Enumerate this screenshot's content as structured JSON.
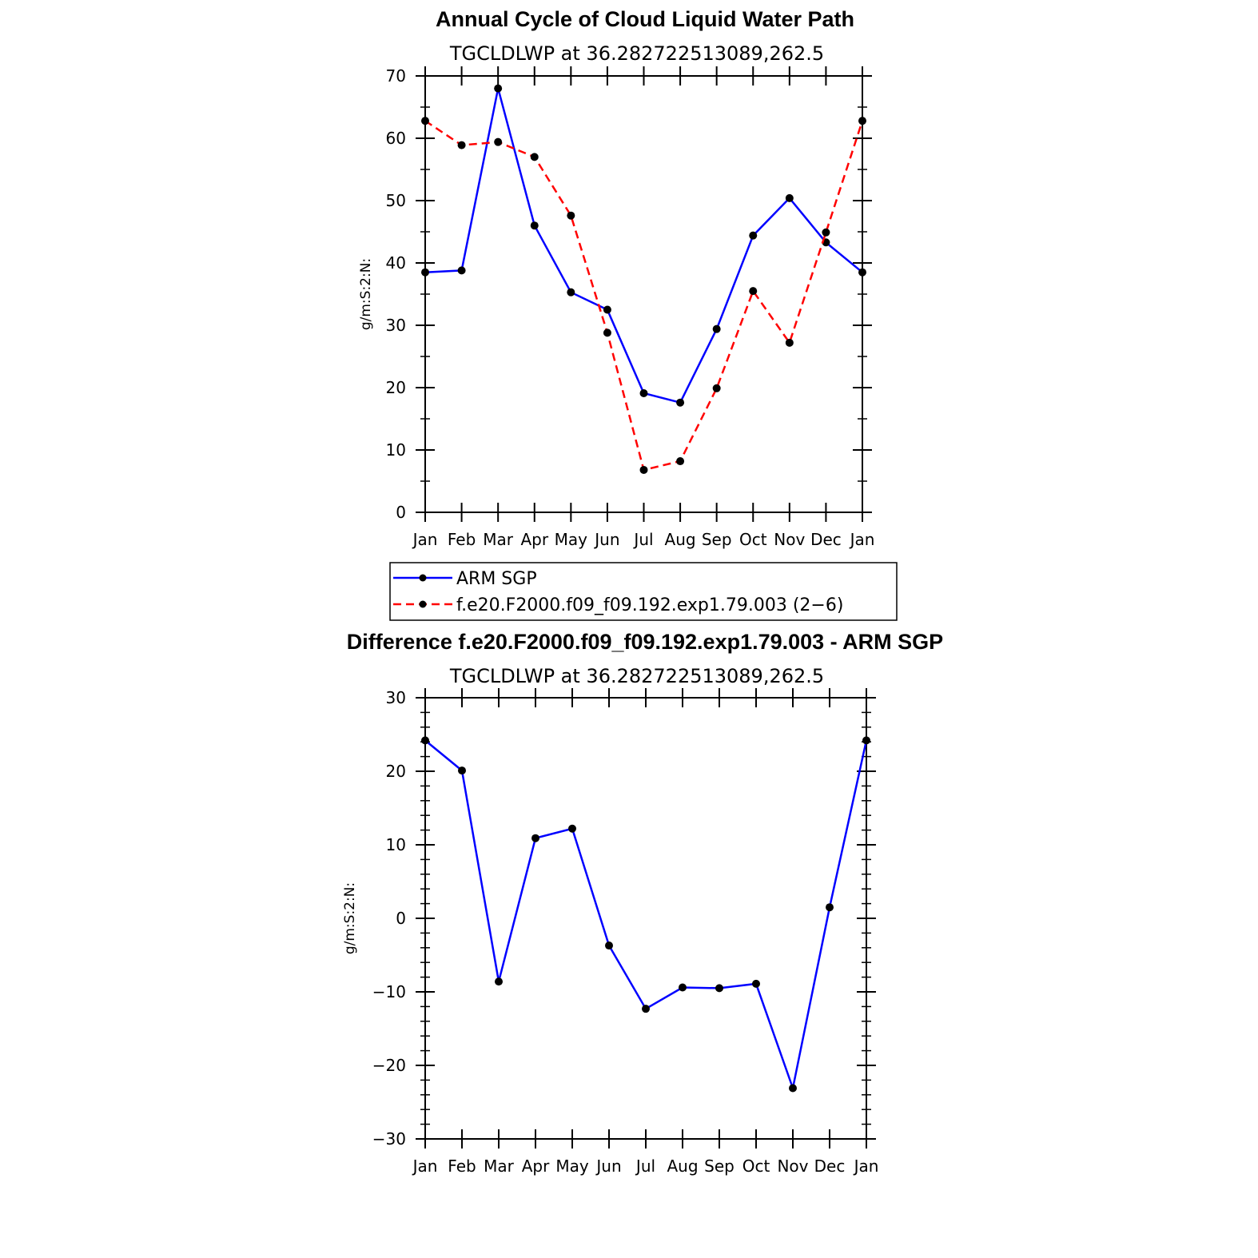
{
  "chart_data": [
    {
      "type": "line",
      "title": "Annual Cycle of Cloud Liquid Water Path",
      "subtitle": "TGCLDLWP  at  36.282722513089,262.5",
      "ylabel": "g/m:S:2:N:",
      "xlabel": "",
      "categories": [
        "Jan",
        "Feb",
        "Mar",
        "Apr",
        "May",
        "Jun",
        "Jul",
        "Aug",
        "Sep",
        "Oct",
        "Nov",
        "Dec",
        "Jan"
      ],
      "ylim": [
        0,
        70
      ],
      "yticks": [
        "0",
        "10",
        "20",
        "30",
        "40",
        "50",
        "60",
        "70"
      ],
      "series": [
        {
          "name": "ARM  SGP",
          "color": "#0000ff",
          "dash": "solid",
          "values": [
            38.5,
            38.8,
            68.0,
            46.0,
            35.3,
            32.5,
            19.1,
            17.6,
            29.4,
            44.4,
            50.4,
            43.3,
            38.5
          ]
        },
        {
          "name": "f.e20.F2000.f09_f09.192.exp1.79.003  (2−6)",
          "color": "#ff0000",
          "dash": "dashed",
          "values": [
            62.8,
            58.9,
            59.4,
            57.0,
            47.6,
            28.8,
            6.8,
            8.2,
            19.9,
            35.5,
            27.2,
            44.9,
            62.8
          ]
        }
      ],
      "legend": "bottom"
    },
    {
      "type": "line",
      "title": "Difference f.e20.F2000.f09_f09.192.exp1.79.003 - ARM SGP",
      "subtitle": "TGCLDLWP  at  36.282722513089,262.5",
      "ylabel": "g/m:S:2:N:",
      "xlabel": "",
      "categories": [
        "Jan",
        "Feb",
        "Mar",
        "Apr",
        "May",
        "Jun",
        "Jul",
        "Aug",
        "Sep",
        "Oct",
        "Nov",
        "Dec",
        "Jan"
      ],
      "ylim": [
        -30,
        30
      ],
      "yticks": [
        "−30",
        "−20",
        "−10",
        "0",
        "10",
        "20",
        "30"
      ],
      "series": [
        {
          "name": "Difference",
          "color": "#0000ff",
          "dash": "solid",
          "values": [
            24.2,
            20.1,
            -8.6,
            10.9,
            12.2,
            -3.7,
            -12.3,
            -9.4,
            -9.5,
            -8.9,
            -23.1,
            1.5,
            24.2
          ]
        }
      ]
    }
  ]
}
